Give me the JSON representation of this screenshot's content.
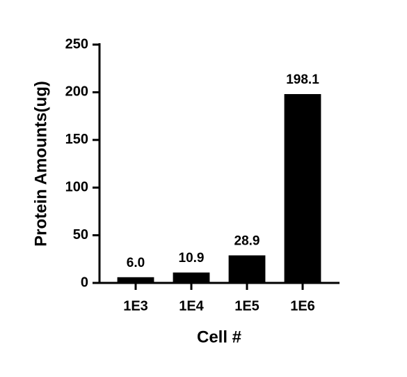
{
  "chart_data": {
    "type": "bar",
    "categories": [
      "1E3",
      "1E4",
      "1E5",
      "1E6"
    ],
    "values": [
      6.0,
      10.9,
      28.9,
      198.1
    ],
    "value_labels": [
      "6.0",
      "10.9",
      "28.9",
      "198.1"
    ],
    "color": "#000000",
    "x_label": "Cell #",
    "y_label": "Protein Amounts(ug)",
    "ylim": [
      0,
      250
    ],
    "yticks": [
      0,
      50,
      100,
      150,
      200,
      250
    ],
    "grid": false
  }
}
